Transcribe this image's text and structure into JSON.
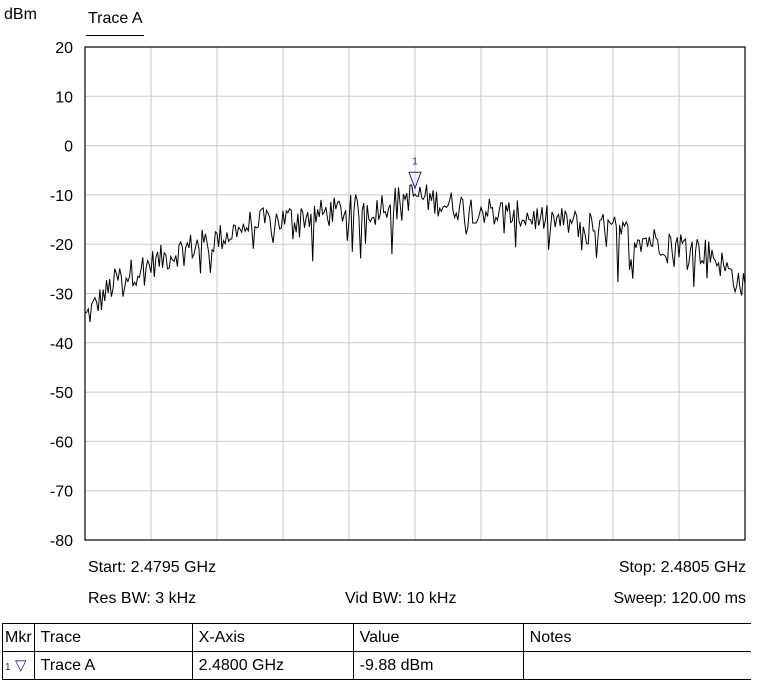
{
  "chart_data": {
    "type": "line",
    "ylabel": "dBm",
    "legend": "Trace A",
    "ylim": [
      -80,
      20
    ],
    "y_ticks": [
      "20",
      "10",
      "0",
      "-10",
      "-20",
      "-30",
      "-40",
      "-50",
      "-60",
      "-70",
      "-80"
    ],
    "x_start_ghz": 2.4795,
    "x_stop_ghz": 2.4805,
    "grid": true,
    "series": [
      {
        "name": "Trace A",
        "color": "#000000",
        "x_ghz": [
          2.4795,
          2.47955,
          2.4796,
          2.47965,
          2.4797,
          2.47975,
          2.4798,
          2.47985,
          2.4799,
          2.47995,
          2.48,
          2.48005,
          2.4801,
          2.48015,
          2.4802,
          2.48025,
          2.4803,
          2.48035,
          2.4804,
          2.48045,
          2.4805
        ],
        "values": [
          -35,
          -27,
          -24,
          -21,
          -19,
          -16,
          -15,
          -14,
          -13,
          -12,
          -10,
          -12,
          -13,
          -14,
          -15,
          -16,
          -17,
          -19,
          -20,
          -22,
          -29
        ]
      }
    ],
    "marker": {
      "id": "1",
      "x_ghz": 2.48,
      "y": -9.88
    }
  },
  "footer": {
    "start": "Start: 2.4795 GHz",
    "stop": "Stop: 2.4805 GHz",
    "res_bw": "Res BW: 3 kHz",
    "vid_bw": "Vid BW: 10 kHz",
    "sweep": "Sweep: 120.00 ms"
  },
  "marker_table": {
    "headers": {
      "mkr": "Mkr",
      "trace": "Trace",
      "x_axis": "X-Axis",
      "value": "Value",
      "notes": "Notes"
    },
    "rows": [
      {
        "mkr": "1",
        "trace": "Trace A",
        "x_axis": "2.4800 GHz",
        "value": "-9.88 dBm",
        "notes": ""
      }
    ]
  },
  "colors": {
    "marker": "#1a1aa0",
    "grid": "#c8c8c8",
    "trace": "#000000"
  }
}
